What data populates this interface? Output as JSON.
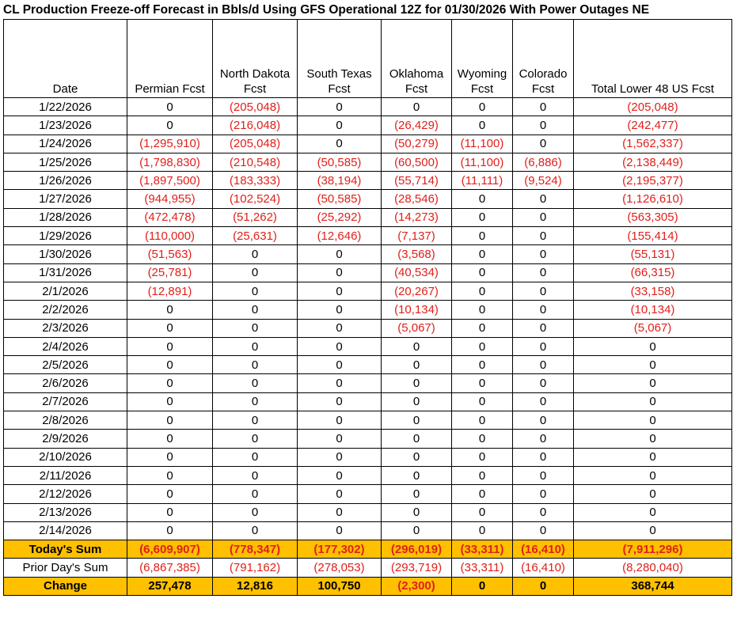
{
  "title": "CL Production Freeze-off Forecast in Bbls/d Using GFS Operational 12Z for 01/30/2026 With Power Outages NE",
  "chart_data": {
    "type": "table",
    "columns": [
      {
        "line1": "",
        "line2": "Date"
      },
      {
        "line1": "",
        "line2": "Permian Fcst"
      },
      {
        "line1": "North Dakota",
        "line2": "Fcst"
      },
      {
        "line1": "South Texas",
        "line2": "Fcst"
      },
      {
        "line1": "Oklahoma",
        "line2": "Fcst"
      },
      {
        "line1": "Wyoming",
        "line2": "Fcst"
      },
      {
        "line1": "Colorado",
        "line2": "Fcst"
      },
      {
        "line1": "",
        "line2": "Total Lower 48 US Fcst"
      }
    ],
    "rows": [
      [
        "1/22/2026",
        "0",
        "(205,048)",
        "0",
        "0",
        "0",
        "0",
        "(205,048)"
      ],
      [
        "1/23/2026",
        "0",
        "(216,048)",
        "0",
        "(26,429)",
        "0",
        "0",
        "(242,477)"
      ],
      [
        "1/24/2026",
        "(1,295,910)",
        "(205,048)",
        "0",
        "(50,279)",
        "(11,100)",
        "0",
        "(1,562,337)"
      ],
      [
        "1/25/2026",
        "(1,798,830)",
        "(210,548)",
        "(50,585)",
        "(60,500)",
        "(11,100)",
        "(6,886)",
        "(2,138,449)"
      ],
      [
        "1/26/2026",
        "(1,897,500)",
        "(183,333)",
        "(38,194)",
        "(55,714)",
        "(11,111)",
        "(9,524)",
        "(2,195,377)"
      ],
      [
        "1/27/2026",
        "(944,955)",
        "(102,524)",
        "(50,585)",
        "(28,546)",
        "0",
        "0",
        "(1,126,610)"
      ],
      [
        "1/28/2026",
        "(472,478)",
        "(51,262)",
        "(25,292)",
        "(14,273)",
        "0",
        "0",
        "(563,305)"
      ],
      [
        "1/29/2026",
        "(110,000)",
        "(25,631)",
        "(12,646)",
        "(7,137)",
        "0",
        "0",
        "(155,414)"
      ],
      [
        "1/30/2026",
        "(51,563)",
        "0",
        "0",
        "(3,568)",
        "0",
        "0",
        "(55,131)"
      ],
      [
        "1/31/2026",
        "(25,781)",
        "0",
        "0",
        "(40,534)",
        "0",
        "0",
        "(66,315)"
      ],
      [
        "2/1/2026",
        "(12,891)",
        "0",
        "0",
        "(20,267)",
        "0",
        "0",
        "(33,158)"
      ],
      [
        "2/2/2026",
        "0",
        "0",
        "0",
        "(10,134)",
        "0",
        "0",
        "(10,134)"
      ],
      [
        "2/3/2026",
        "0",
        "0",
        "0",
        "(5,067)",
        "0",
        "0",
        "(5,067)"
      ],
      [
        "2/4/2026",
        "0",
        "0",
        "0",
        "0",
        "0",
        "0",
        "0"
      ],
      [
        "2/5/2026",
        "0",
        "0",
        "0",
        "0",
        "0",
        "0",
        "0"
      ],
      [
        "2/6/2026",
        "0",
        "0",
        "0",
        "0",
        "0",
        "0",
        "0"
      ],
      [
        "2/7/2026",
        "0",
        "0",
        "0",
        "0",
        "0",
        "0",
        "0"
      ],
      [
        "2/8/2026",
        "0",
        "0",
        "0",
        "0",
        "0",
        "0",
        "0"
      ],
      [
        "2/9/2026",
        "0",
        "0",
        "0",
        "0",
        "0",
        "0",
        "0"
      ],
      [
        "2/10/2026",
        "0",
        "0",
        "0",
        "0",
        "0",
        "0",
        "0"
      ],
      [
        "2/11/2026",
        "0",
        "0",
        "0",
        "0",
        "0",
        "0",
        "0"
      ],
      [
        "2/12/2026",
        "0",
        "0",
        "0",
        "0",
        "0",
        "0",
        "0"
      ],
      [
        "2/13/2026",
        "0",
        "0",
        "0",
        "0",
        "0",
        "0",
        "0"
      ],
      [
        "2/14/2026",
        "0",
        "0",
        "0",
        "0",
        "0",
        "0",
        "0"
      ]
    ],
    "summary_rows": [
      {
        "label": "Today's Sum",
        "style": "highlight",
        "values": [
          "(6,609,907)",
          "(778,347)",
          "(177,302)",
          "(296,019)",
          "(33,311)",
          "(16,410)",
          "(7,911,296)"
        ]
      },
      {
        "label": "Prior Day's Sum",
        "style": "plain",
        "values": [
          "(6,867,385)",
          "(791,162)",
          "(278,053)",
          "(293,719)",
          "(33,311)",
          "(16,410)",
          "(8,280,040)"
        ]
      },
      {
        "label": "Change",
        "style": "highlight",
        "values": [
          "257,478",
          "12,816",
          "100,750",
          "(2,300)",
          "0",
          "0",
          "368,744"
        ]
      }
    ],
    "negative_color": "#e0201b",
    "highlight_color": "#ffc000"
  }
}
